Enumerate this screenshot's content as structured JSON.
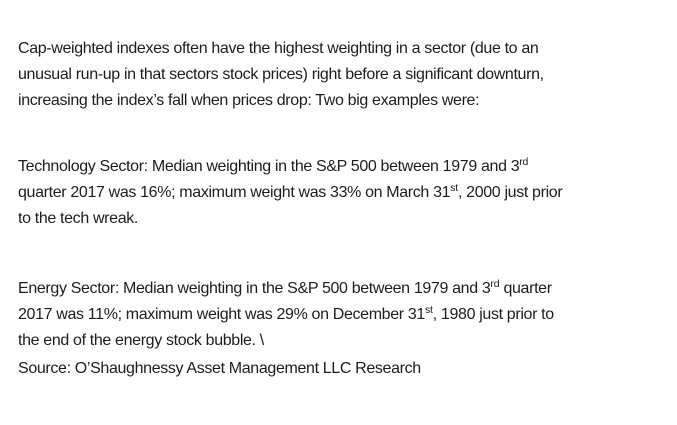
{
  "document": {
    "background_color": "#ffffff",
    "text_color": "#1c1c1c",
    "paragraphs": [
      {
        "name": "intro",
        "segments": [
          {
            "t": "Cap-weighted indexes often have the highest weighting in a sector (due to an"
          },
          {
            "br": true
          },
          {
            "t": "unusual run-up in that sectors stock prices) right before a significant downturn,"
          },
          {
            "br": true
          },
          {
            "t": "increasing the index’s fall when prices drop: Two big examples were:"
          }
        ]
      },
      {
        "name": "technology",
        "segments": [
          {
            "t": "Technology Sector: Median weighting in the S&P 500 between 1979 and 3"
          },
          {
            "t": "rd",
            "sup": true
          },
          {
            "br": true
          },
          {
            "t": "quarter 2017 was 16%; maximum weight was 33% on March 31"
          },
          {
            "t": "st",
            "sup": true
          },
          {
            "t": ", 2000 just prior"
          },
          {
            "br": true
          },
          {
            "t": "to the tech wreak."
          }
        ]
      },
      {
        "name": "energy",
        "segments": [
          {
            "t": "Energy Sector: Median weighting in the S&P 500 between 1979 and 3"
          },
          {
            "t": "rd",
            "sup": true
          },
          {
            "t": " quarter"
          },
          {
            "br": true
          },
          {
            "t": "2017 was 11%; maximum weight was 29% on December 31"
          },
          {
            "t": "st",
            "sup": true
          },
          {
            "t": ", 1980 just prior to"
          },
          {
            "br": true
          },
          {
            "t": "the end of the energy stock bubble. \\"
          }
        ]
      },
      {
        "name": "source",
        "segments": [
          {
            "t": "Source: O’Shaughnessy Asset Management LLC Research"
          }
        ]
      }
    ]
  }
}
